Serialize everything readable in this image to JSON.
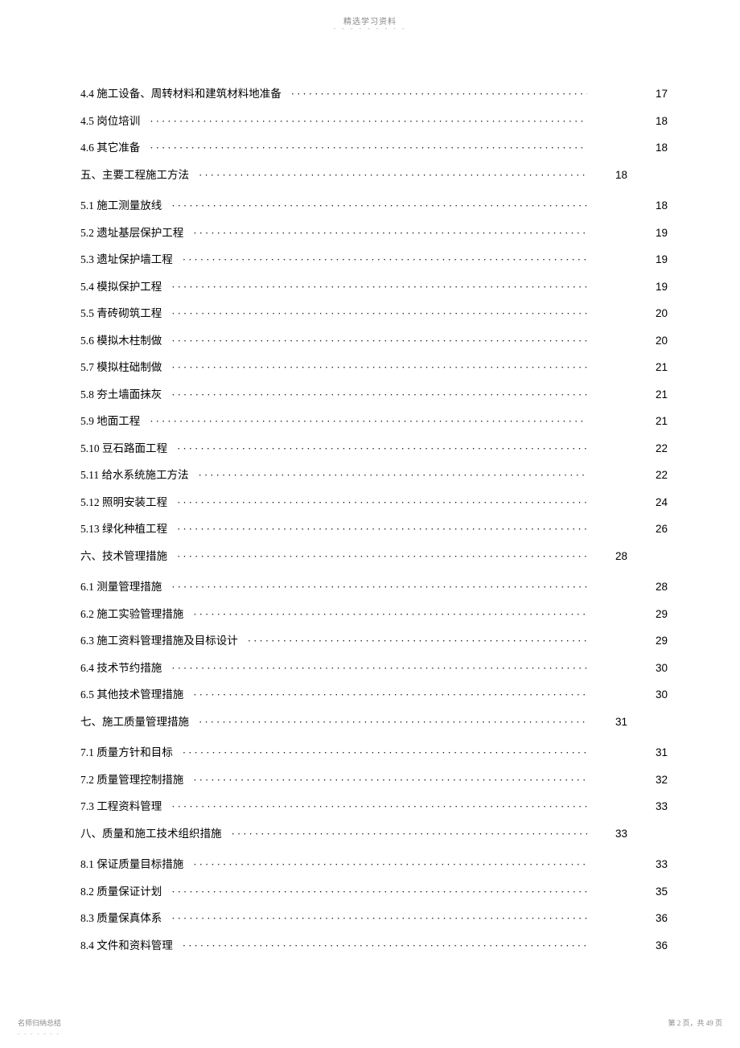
{
  "header": {
    "text": "精选学习资料",
    "dashes": "- - - - - - - - -"
  },
  "toc": [
    {
      "title": "4.4 施工设备、周转材料和建筑材料地准备",
      "page_col1": "",
      "page_col2": "17",
      "leader_len": 58,
      "section": false
    },
    {
      "title": "4.5 岗位培训",
      "page_col1": "",
      "page_col2": "18",
      "leader_len": 82,
      "section": false
    },
    {
      "title": "4.6 其它准备",
      "page_col1": "",
      "page_col2": "18",
      "leader_len": 82,
      "section": false
    },
    {
      "title": "五、主要工程施工方法",
      "page_col1": "18",
      "page_col2": "",
      "leader_len": 66,
      "section": true
    },
    {
      "title": "5.1 施工测量放线",
      "page_col1": "",
      "page_col2": "18",
      "leader_len": 78,
      "section": false
    },
    {
      "title": "5.2 遗址基层保护工程",
      "page_col1": "",
      "page_col2": "19",
      "leader_len": 73,
      "section": false
    },
    {
      "title": "5.3 遗址保护墙工程",
      "page_col1": "",
      "page_col2": "19",
      "leader_len": 76,
      "section": false
    },
    {
      "title": "5.4 模拟保护工程",
      "page_col1": "",
      "page_col2": "19",
      "leader_len": 78,
      "section": false
    },
    {
      "title": "5.5 青砖砌筑工程",
      "page_col1": "",
      "page_col2": "20",
      "leader_len": 78,
      "section": false
    },
    {
      "title": "5.6 模拟木柱制做",
      "page_col1": "",
      "page_col2": "20",
      "leader_len": 78,
      "section": false
    },
    {
      "title": "5.7 模拟柱础制做",
      "page_col1": "",
      "page_col2": "21",
      "leader_len": 78,
      "section": false
    },
    {
      "title": "5.8 夯土墙面抹灰",
      "page_col1": "",
      "page_col2": "21",
      "leader_len": 78,
      "section": false
    },
    {
      "title": "5.9 地面工程",
      "page_col1": "",
      "page_col2": "21",
      "leader_len": 82,
      "section": false
    },
    {
      "title": "5.10 豆石路面工程",
      "page_col1": "",
      "page_col2": "22",
      "leader_len": 76,
      "section": false
    },
    {
      "title": "5.11 给水系统施工方法",
      "page_col1": "",
      "page_col2": "22",
      "leader_len": 71,
      "section": false
    },
    {
      "title": "5.12 照明安装工程",
      "page_col1": "",
      "page_col2": "24",
      "leader_len": 76,
      "section": false
    },
    {
      "title": "5.13 绿化种植工程",
      "page_col1": "",
      "page_col2": "26",
      "leader_len": 76,
      "section": false
    },
    {
      "title": "六、技术管理措施",
      "page_col1": "28",
      "page_col2": "",
      "leader_len": 70,
      "section": true
    },
    {
      "title": "6.1 测量管理措施",
      "page_col1": "",
      "page_col2": "28",
      "leader_len": 78,
      "section": false
    },
    {
      "title": "6.2 施工实验管理措施",
      "page_col1": "",
      "page_col2": "29",
      "leader_len": 73,
      "section": false
    },
    {
      "title": "6.3 施工资料管理措施及目标设计",
      "page_col1": "",
      "page_col2": "29",
      "leader_len": 62,
      "section": false
    },
    {
      "title": "6.4 技术节约措施",
      "page_col1": "",
      "page_col2": "30",
      "leader_len": 78,
      "section": false
    },
    {
      "title": "6.5 其他技术管理措施",
      "page_col1": "",
      "page_col2": "30",
      "leader_len": 73,
      "section": false
    },
    {
      "title": "七、施工质量管理措施",
      "page_col1": "31",
      "page_col2": "",
      "leader_len": 66,
      "section": true
    },
    {
      "title": "7.1 质量方针和目标",
      "page_col1": "",
      "page_col2": "31",
      "leader_len": 76,
      "section": false
    },
    {
      "title": "7.2 质量管理控制措施",
      "page_col1": "",
      "page_col2": "32",
      "leader_len": 73,
      "section": false
    },
    {
      "title": "7.3 工程资料管理",
      "page_col1": "",
      "page_col2": "33",
      "leader_len": 78,
      "section": false
    },
    {
      "title": "八、质量和施工技术组织措施",
      "page_col1": "33",
      "page_col2": "",
      "leader_len": 60,
      "section": true
    },
    {
      "title": "8.1 保证质量目标措施",
      "page_col1": "",
      "page_col2": "33",
      "leader_len": 73,
      "section": false
    },
    {
      "title": "8.2 质量保证计划",
      "page_col1": "",
      "page_col2": "35",
      "leader_len": 78,
      "section": false
    },
    {
      "title": "8.3 质量保真体系",
      "page_col1": "",
      "page_col2": "36",
      "leader_len": 78,
      "section": false
    },
    {
      "title": "8.4 文件和资料管理",
      "page_col1": "",
      "page_col2": "36",
      "leader_len": 76,
      "section": false
    }
  ],
  "footer": {
    "left": "名师归纳总结",
    "left_dashes": "- - - - - - -",
    "right_prefix": "第 ",
    "right_page": "2",
    "right_mid": " 页，共 ",
    "right_total": "49",
    "right_suffix": " 页"
  }
}
